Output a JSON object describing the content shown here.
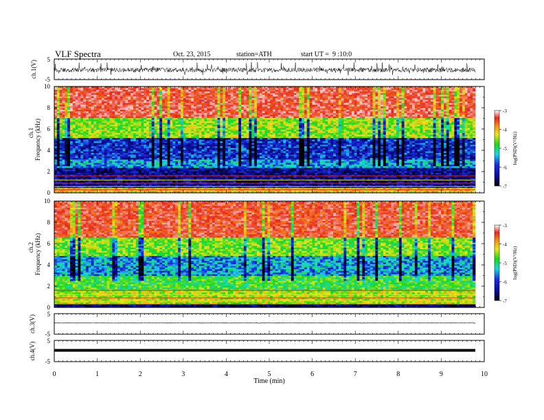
{
  "header": {
    "title": "VLF Spectra",
    "date": "Oct. 23, 2015",
    "station": "station=ATH",
    "start": "start UT =  9 :10:0"
  },
  "colors": {
    "background": "#ffffff",
    "axis": "#000000",
    "spectrogram_red": "#e8281c",
    "spectrogram_yellow": "#e6e61a",
    "spectrogram_green": "#19d919",
    "spectrogram_cyan": "#1ad6e6",
    "spectrogram_blue": "#1a2be0",
    "spectrogram_navy": "#0a0a6e"
  },
  "chart_data": [
    {
      "type": "line",
      "panel": "ch1-waveform",
      "ylabel": "ch.1(V)",
      "ylim": [
        -5,
        5
      ],
      "yticks": [
        "5",
        "-5"
      ],
      "xlim": [
        0,
        10
      ],
      "series": [
        {
          "values_description_range": [
            -2.5,
            2.5
          ]
        }
      ],
      "amplitude_band": [
        -1.5,
        2.0
      ]
    },
    {
      "type": "heatmap",
      "panel": "ch1-spectrogram",
      "ylabel": "Frequency (kHz)",
      "channel_label": "ch.1",
      "ylim": [
        0,
        10
      ],
      "yticks": [
        "0",
        "2",
        "4",
        "6",
        "8",
        "10"
      ],
      "xlim": [
        0,
        9.8
      ],
      "colorbar": {
        "label": "log(PSD)(V²/Hz)",
        "range": [
          -7,
          -3
        ],
        "ticks": [
          "-3",
          "-4",
          "-5",
          "-6",
          "-7"
        ]
      },
      "bands_logpsd": [
        {
          "from_khz": 0,
          "to_khz": 0.5,
          "value": -4.5
        },
        {
          "from_khz": 0.5,
          "to_khz": 2.3,
          "value": -6.5
        },
        {
          "from_khz": 2.3,
          "to_khz": 3.2,
          "value": -5.8
        },
        {
          "from_khz": 3.2,
          "to_khz": 5.2,
          "value": -6.2
        },
        {
          "from_khz": 5.2,
          "to_khz": 7.0,
          "value": -4.9
        },
        {
          "from_khz": 7.0,
          "to_khz": 10,
          "value": -3.6
        }
      ]
    },
    {
      "type": "heatmap",
      "panel": "ch2-spectrogram",
      "ylabel": "Frequency (kHz)",
      "channel_label": "ch.2",
      "ylim": [
        0,
        10
      ],
      "yticks": [
        "0",
        "2",
        "4",
        "6",
        "8",
        "10"
      ],
      "xlim": [
        0,
        9.8
      ],
      "colorbar": {
        "label": "log(PSD)(V²/Hz)",
        "range": [
          -7,
          -3
        ],
        "ticks": [
          "-3",
          "-4",
          "-5",
          "-6",
          "-7"
        ]
      },
      "bands_logpsd": [
        {
          "from_khz": 0,
          "to_khz": 0.3,
          "value": -6.6
        },
        {
          "from_khz": 0.3,
          "to_khz": 1.5,
          "value": -4.8
        },
        {
          "from_khz": 1.5,
          "to_khz": 3.0,
          "value": -5.2
        },
        {
          "from_khz": 3.0,
          "to_khz": 4.8,
          "value": -5.8
        },
        {
          "from_khz": 4.8,
          "to_khz": 6.5,
          "value": -5.0
        },
        {
          "from_khz": 6.5,
          "to_khz": 10,
          "value": -3.7
        }
      ]
    },
    {
      "type": "line",
      "panel": "ch3-waveform",
      "ylabel": "ch.3(V)",
      "ylim": [
        -5,
        5
      ],
      "yticks": [
        "5",
        "-5"
      ],
      "xlim": [
        0,
        9.8
      ],
      "series": [
        {
          "constant": 0
        }
      ]
    },
    {
      "type": "line",
      "panel": "ch4-waveform",
      "ylabel": "ch.4(V)",
      "ylim": [
        -5,
        5
      ],
      "yticks": [
        "5",
        "-5"
      ],
      "xlim": [
        0,
        9.8
      ],
      "series": [
        {
          "constant": 0
        }
      ]
    },
    {
      "type": "axis",
      "panel": "time-axis",
      "xlabel": "Time (min)",
      "xlim": [
        0,
        10
      ],
      "xticks": [
        "0",
        "1",
        "2",
        "3",
        "4",
        "5",
        "6",
        "7",
        "8",
        "9",
        "10"
      ]
    }
  ]
}
